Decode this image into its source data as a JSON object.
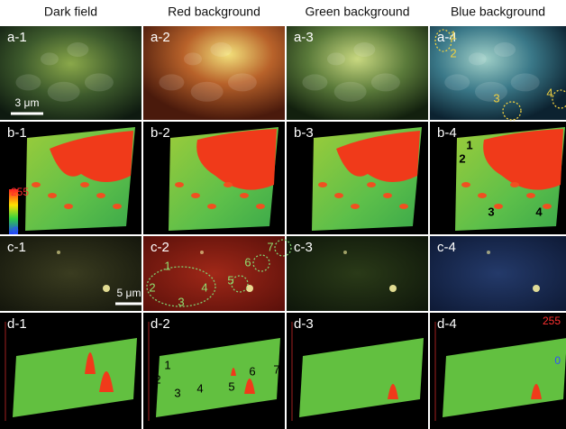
{
  "column_headers": [
    "Dark field",
    "Red background",
    "Green background",
    "Blue background"
  ],
  "rows": [
    {
      "panels": [
        "a-1",
        "a-2",
        "a-3",
        "a-4"
      ]
    },
    {
      "panels": [
        "b-1",
        "b-2",
        "b-3",
        "b-4"
      ]
    },
    {
      "panels": [
        "c-1",
        "c-2",
        "c-3",
        "c-4"
      ]
    },
    {
      "panels": [
        "d-1",
        "d-2",
        "d-3",
        "d-4"
      ]
    }
  ],
  "scale_bars": {
    "a": "3 μm",
    "c": "5 μm"
  },
  "colorbars": [
    {
      "max": "255",
      "min": "0"
    },
    {
      "max": "255",
      "min": "0"
    }
  ],
  "annotations": {
    "a_4": [
      "1",
      "2",
      "3",
      "4"
    ],
    "b_4": [
      "1",
      "2",
      "3",
      "4"
    ],
    "c_2": [
      "1",
      "2",
      "3",
      "4",
      "5",
      "6",
      "7"
    ],
    "d_2": [
      "1",
      "2",
      "3",
      "4",
      "5",
      "6",
      "7"
    ]
  }
}
